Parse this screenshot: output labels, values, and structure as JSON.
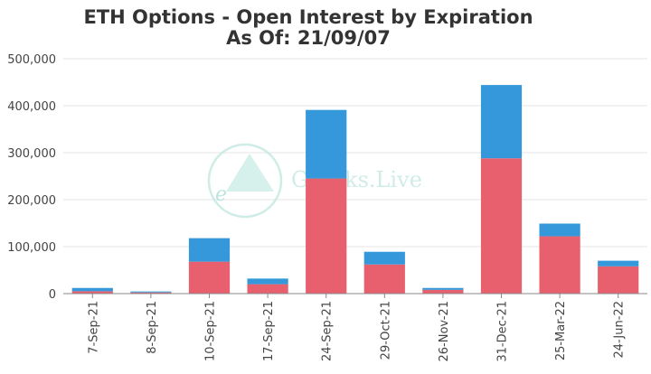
{
  "chart_data": {
    "type": "bar",
    "stacked": true,
    "title": "ETH Options - Open Interest by Expiration",
    "subtitle": "As Of: 21/09/07",
    "xlabel": "",
    "ylabel": "",
    "categories": [
      "7-Sep-21",
      "8-Sep-21",
      "10-Sep-21",
      "17-Sep-21",
      "24-Sep-21",
      "29-Oct-21",
      "26-Nov-21",
      "31-Dec-21",
      "25-Mar-22",
      "24-Jun-22"
    ],
    "series": [
      {
        "color": "#e8606d",
        "values": [
          5000,
          2500,
          68000,
          20000,
          245000,
          62000,
          8000,
          288000,
          122000,
          58000
        ]
      },
      {
        "color": "#3498db",
        "values": [
          7000,
          2000,
          50000,
          12000,
          146000,
          27000,
          4000,
          156000,
          27000,
          12000
        ]
      }
    ],
    "ylim": [
      0,
      500000
    ],
    "yticks": [
      0,
      100000,
      200000,
      300000,
      400000,
      500000
    ],
    "ytick_labels": [
      "0",
      "100,000",
      "200,000",
      "300,000",
      "400,000",
      "500,000"
    ],
    "grid": true,
    "legend": "none"
  },
  "watermark": {
    "text": "Greeks.Live",
    "glyph": "e",
    "color": "#a8ddd4"
  }
}
